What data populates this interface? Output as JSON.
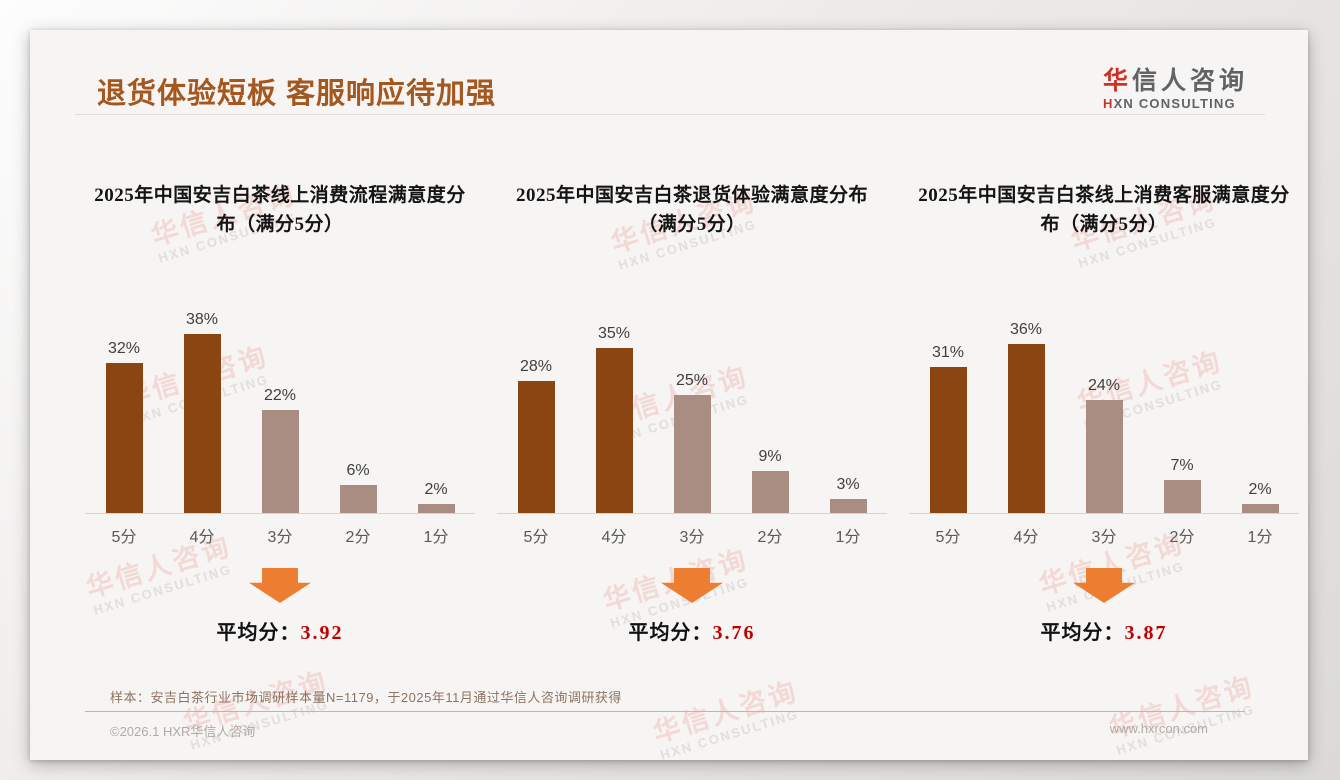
{
  "page": {
    "title": "退货体验短板 客服响应待加强",
    "logo": {
      "cn_accent": "华",
      "cn_rest": "信人咨询",
      "en_accent": "H",
      "en_rest": "XN CONSULTING"
    },
    "watermark": {
      "cn": "华信人咨询",
      "en": "HXN CONSULTING"
    },
    "footnote": "样本：安吉白茶行业市场调研样本量N=1179，于2025年11月通过华信人咨询调研获得",
    "footer": {
      "left": "©2026.1 HXR华信人咨询",
      "right": "www.hxrcon.com"
    }
  },
  "colors": {
    "title-brown": "#A4571F",
    "logo-red": "#D03126",
    "logo-gray": "#616265",
    "bar-dark": "#8A4512",
    "bar-light": "#A98C82",
    "arrow-orange": "#ED7D31",
    "average-red": "#C00000",
    "footnote-brown": "#8D7363",
    "footer-gray": "#B3AAA3",
    "watermark-pink": "#F2D9D6",
    "watermark-gray": "#E2DEDA"
  },
  "chart_data": [
    {
      "type": "bar",
      "title": "2025年中国安吉白茶线上消费流程满意度分布（满分5分）",
      "categories": [
        "5分",
        "4分",
        "3分",
        "2分",
        "1分"
      ],
      "values": [
        32,
        38,
        22,
        6,
        2
      ],
      "value_labels": [
        "32%",
        "38%",
        "22%",
        "6%",
        "2%"
      ],
      "unit": "%",
      "ylim": [
        0,
        40
      ],
      "grid": false,
      "legend": false,
      "bar_styles": [
        "dark",
        "dark",
        "light",
        "light",
        "light"
      ],
      "average_label": "平均分：",
      "average": "3.92"
    },
    {
      "type": "bar",
      "title": "2025年中国安吉白茶退货体验满意度分布（满分5分）",
      "categories": [
        "5分",
        "4分",
        "3分",
        "2分",
        "1分"
      ],
      "values": [
        28,
        35,
        25,
        9,
        3
      ],
      "value_labels": [
        "28%",
        "35%",
        "25%",
        "9%",
        "3%"
      ],
      "unit": "%",
      "ylim": [
        0,
        40
      ],
      "grid": false,
      "legend": false,
      "bar_styles": [
        "dark",
        "dark",
        "light",
        "light",
        "light"
      ],
      "average_label": "平均分：",
      "average": "3.76"
    },
    {
      "type": "bar",
      "title": "2025年中国安吉白茶线上消费客服满意度分布（满分5分）",
      "categories": [
        "5分",
        "4分",
        "3分",
        "2分",
        "1分"
      ],
      "values": [
        31,
        36,
        24,
        7,
        2
      ],
      "value_labels": [
        "31%",
        "36%",
        "24%",
        "7%",
        "2%"
      ],
      "unit": "%",
      "ylim": [
        0,
        40
      ],
      "grid": false,
      "legend": false,
      "bar_styles": [
        "dark",
        "dark",
        "light",
        "light",
        "light"
      ],
      "average_label": "平均分：",
      "average": "3.87"
    }
  ]
}
